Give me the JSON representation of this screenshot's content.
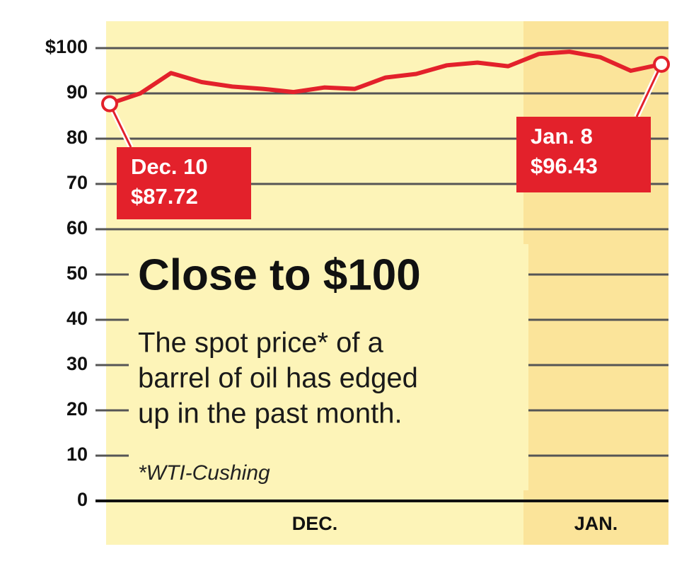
{
  "chart_data": {
    "type": "line",
    "title": "Close to $100",
    "subtitle_lines": [
      "The spot price* of a",
      "barrel of oil has edged",
      "up in the past month."
    ],
    "note": "*WTI-Cushing",
    "categories": [
      null,
      null,
      null,
      null,
      null,
      null,
      null,
      null,
      null,
      null,
      null,
      null,
      null,
      null,
      null,
      null,
      null,
      null,
      null
    ],
    "periods": [
      {
        "label": "DEC.",
        "start": 0
      },
      {
        "label": "JAN.",
        "start": 14
      }
    ],
    "series": [
      {
        "name": null,
        "color": "#e3212b",
        "values": [
          87.72,
          90,
          94.5,
          92.5,
          91.5,
          91,
          90.3,
          91.3,
          91,
          93.5,
          94.3,
          96.2,
          96.8,
          96,
          98.7,
          99.2,
          98,
          95,
          96.43
        ],
        "value_labels": [
          "$87.72",
          null,
          null,
          null,
          null,
          null,
          null,
          null,
          null,
          null,
          null,
          null,
          null,
          null,
          null,
          null,
          null,
          null,
          "$96.43"
        ],
        "date_labels": [
          "Dec. 10",
          null,
          null,
          null,
          null,
          null,
          null,
          null,
          null,
          null,
          null,
          null,
          null,
          null,
          null,
          null,
          null,
          null,
          "Jan. 8"
        ]
      }
    ],
    "ylim": [
      0,
      100
    ],
    "yticks": [
      0,
      10,
      20,
      30,
      40,
      50,
      60,
      70,
      80,
      90,
      {
        "value": 100,
        "label": "$100"
      }
    ],
    "grid": true
  }
}
